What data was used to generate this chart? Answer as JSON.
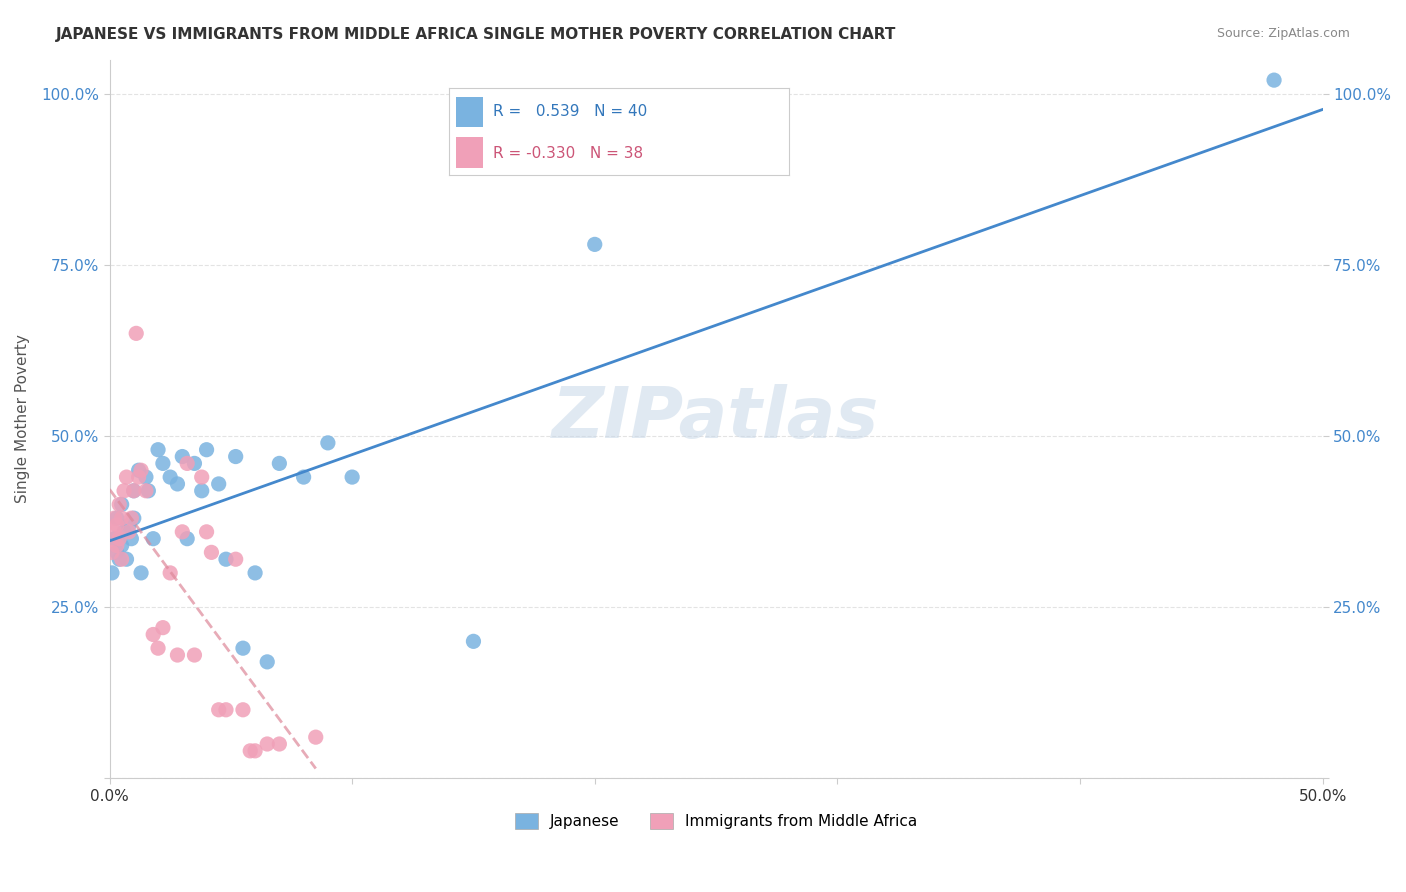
{
  "title": "JAPANESE VS IMMIGRANTS FROM MIDDLE AFRICA SINGLE MOTHER POVERTY CORRELATION CHART",
  "source": "Source: ZipAtlas.com",
  "xlabel": "",
  "ylabel": "Single Mother Poverty",
  "xlim": [
    0.0,
    0.5
  ],
  "ylim": [
    0.0,
    1.05
  ],
  "xticks": [
    0.0,
    0.1,
    0.2,
    0.3,
    0.4,
    0.5
  ],
  "xticklabels": [
    "0.0%",
    "",
    "",
    "",
    "",
    "50.0%"
  ],
  "yticks": [
    0.0,
    0.25,
    0.5,
    0.75,
    1.0
  ],
  "yticklabels": [
    "",
    "25.0%",
    "50.0%",
    "75.0%",
    "100.0%"
  ],
  "background_color": "#ffffff",
  "grid_color": "#dddddd",
  "watermark": "ZIPatlas",
  "blue_color": "#7ab3e0",
  "pink_color": "#f0a0b8",
  "blue_line_color": "#4488cc",
  "pink_line_color": "#dd8899",
  "legend_R_blue": "0.539",
  "legend_N_blue": "40",
  "legend_R_pink": "-0.330",
  "legend_N_pink": "38",
  "legend_label_blue": "Japanese",
  "legend_label_pink": "Immigrants from Middle Africa",
  "japanese_x": [
    0.001,
    0.002,
    0.003,
    0.003,
    0.004,
    0.005,
    0.005,
    0.006,
    0.007,
    0.008,
    0.009,
    0.01,
    0.01,
    0.012,
    0.013,
    0.015,
    0.016,
    0.018,
    0.02,
    0.022,
    0.025,
    0.028,
    0.03,
    0.032,
    0.035,
    0.038,
    0.04,
    0.045,
    0.048,
    0.052,
    0.055,
    0.06,
    0.065,
    0.07,
    0.08,
    0.09,
    0.1,
    0.15,
    0.2,
    0.48
  ],
  "japanese_y": [
    0.3,
    0.35,
    0.33,
    0.38,
    0.32,
    0.34,
    0.4,
    0.36,
    0.32,
    0.37,
    0.35,
    0.42,
    0.38,
    0.45,
    0.3,
    0.44,
    0.42,
    0.35,
    0.48,
    0.46,
    0.44,
    0.43,
    0.47,
    0.35,
    0.46,
    0.42,
    0.48,
    0.43,
    0.32,
    0.47,
    0.19,
    0.3,
    0.17,
    0.46,
    0.44,
    0.49,
    0.44,
    0.2,
    0.78,
    1.02
  ],
  "africa_x": [
    0.001,
    0.002,
    0.002,
    0.003,
    0.003,
    0.004,
    0.004,
    0.005,
    0.005,
    0.006,
    0.007,
    0.008,
    0.009,
    0.01,
    0.011,
    0.012,
    0.013,
    0.015,
    0.018,
    0.02,
    0.022,
    0.025,
    0.028,
    0.03,
    0.032,
    0.035,
    0.038,
    0.04,
    0.042,
    0.045,
    0.048,
    0.052,
    0.055,
    0.058,
    0.06,
    0.065,
    0.07,
    0.085
  ],
  "africa_y": [
    0.33,
    0.38,
    0.36,
    0.34,
    0.37,
    0.35,
    0.4,
    0.32,
    0.38,
    0.42,
    0.44,
    0.36,
    0.38,
    0.42,
    0.65,
    0.44,
    0.45,
    0.42,
    0.21,
    0.19,
    0.22,
    0.3,
    0.18,
    0.36,
    0.46,
    0.18,
    0.44,
    0.36,
    0.33,
    0.1,
    0.1,
    0.32,
    0.1,
    0.04,
    0.04,
    0.05,
    0.05,
    0.06
  ]
}
